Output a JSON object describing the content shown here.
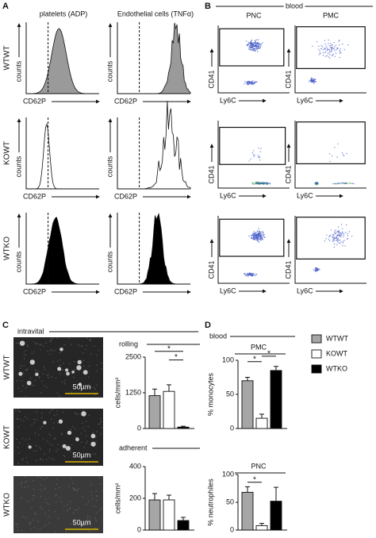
{
  "panels": {
    "A": {
      "label": "A",
      "columns": [
        "platelets (ADP)",
        "Endothelial cells (TNFα)"
      ],
      "rows": [
        "WTWT",
        "KOWT",
        "WTKO"
      ],
      "y_label": "counts",
      "x_label": "CD62P"
    },
    "B": {
      "label": "B",
      "header": "blood",
      "columns": [
        "PNC",
        "PMC"
      ],
      "y_label": "CD41",
      "x_label": "Ly6C"
    },
    "C": {
      "label": "C",
      "header": "intravital",
      "rows": [
        "WTWT",
        "KOWT",
        "WTKO"
      ],
      "scale_bar": "50µm"
    },
    "D": {
      "label": "D",
      "header": "blood"
    }
  },
  "chart_data": [
    {
      "type": "bar",
      "title": "rolling",
      "y_label": "cells/mm²",
      "categories": [
        "WTWT",
        "KOWT",
        "WTKO"
      ],
      "values": [
        1150,
        1300,
        50
      ],
      "errors": [
        230,
        230,
        30
      ],
      "colors": [
        "#a6a6a6",
        "#ffffff",
        "#000000"
      ],
      "ylim": [
        0,
        2500
      ],
      "yticks": [
        0,
        1250,
        2500
      ],
      "annotations": [
        "*",
        "*"
      ]
    },
    {
      "type": "bar",
      "title": "adherent",
      "y_label": "cells/mm²",
      "categories": [
        "WTWT",
        "KOWT",
        "WTKO"
      ],
      "values": [
        190,
        190,
        60
      ],
      "errors": [
        40,
        30,
        20
      ],
      "colors": [
        "#a6a6a6",
        "#ffffff",
        "#000000"
      ],
      "ylim": [
        0,
        400
      ],
      "yticks": [
        0,
        200,
        400
      ]
    },
    {
      "type": "bar",
      "title": "PMC",
      "y_label": "% monocytes",
      "categories": [
        "WTWT",
        "KOWT",
        "WTKO"
      ],
      "values": [
        70,
        15,
        85
      ],
      "errors": [
        5,
        6,
        6
      ],
      "colors": [
        "#a6a6a6",
        "#ffffff",
        "#000000"
      ],
      "ylim": [
        0,
        100
      ],
      "yticks": [
        0,
        50,
        100
      ],
      "annotations": [
        "*",
        "*"
      ]
    },
    {
      "type": "bar",
      "title": "PNC",
      "y_label": "% neutrophiles",
      "categories": [
        "WTWT",
        "KOWT",
        "WTKO"
      ],
      "values": [
        68,
        8,
        52
      ],
      "errors": [
        10,
        4,
        25
      ],
      "colors": [
        "#a6a6a6",
        "#ffffff",
        "#000000"
      ],
      "ylim": [
        0,
        100
      ],
      "yticks": [
        0,
        50,
        100
      ],
      "annotations": [
        "*"
      ]
    }
  ]
}
